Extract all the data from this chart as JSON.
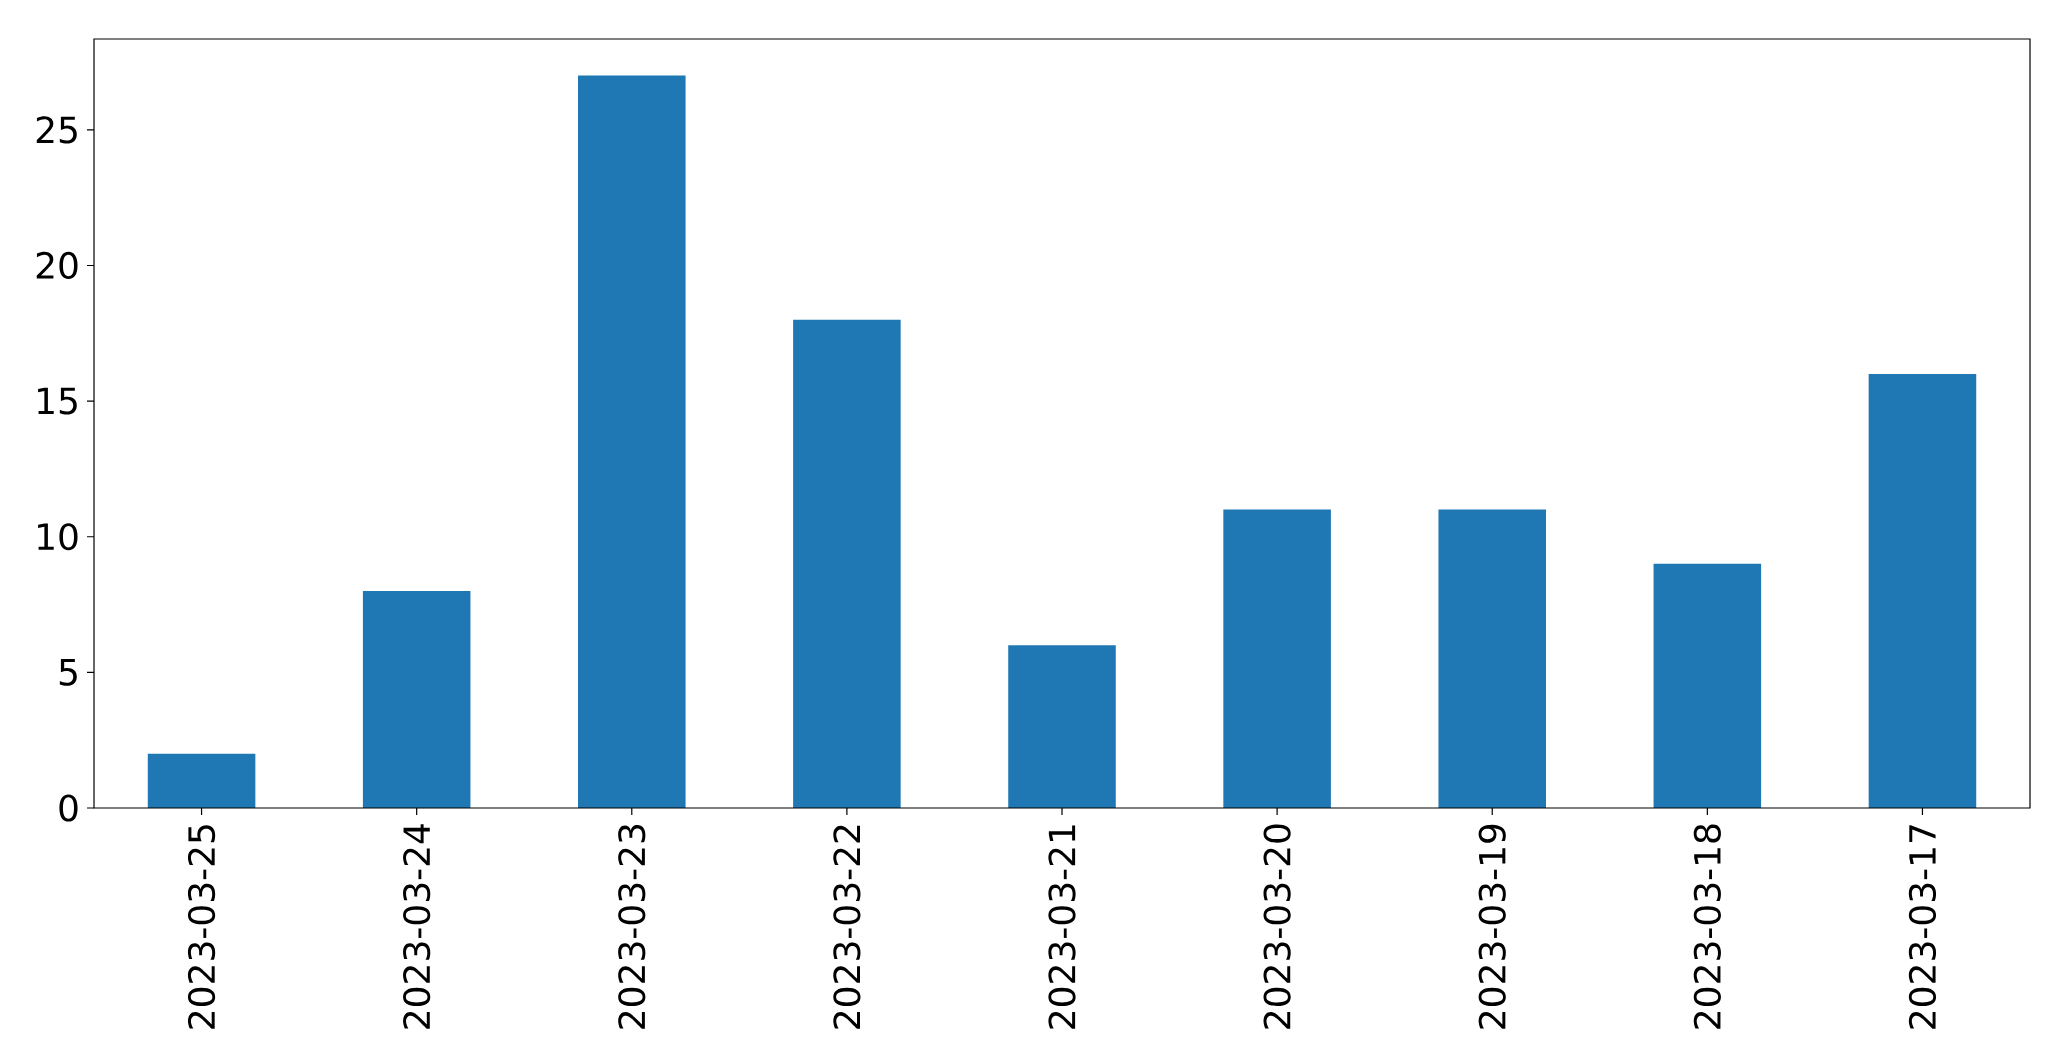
{
  "chart_data": {
    "type": "bar",
    "categories": [
      "2023-03-25",
      "2023-03-24",
      "2023-03-23",
      "2023-03-22",
      "2023-03-21",
      "2023-03-20",
      "2023-03-19",
      "2023-03-18",
      "2023-03-17"
    ],
    "values": [
      2,
      8,
      27,
      18,
      6,
      11,
      11,
      9,
      16
    ],
    "color": "#1f77b4",
    "ylim": [
      0,
      28.35
    ],
    "yticks": [
      0,
      5,
      10,
      15,
      20,
      25
    ]
  }
}
